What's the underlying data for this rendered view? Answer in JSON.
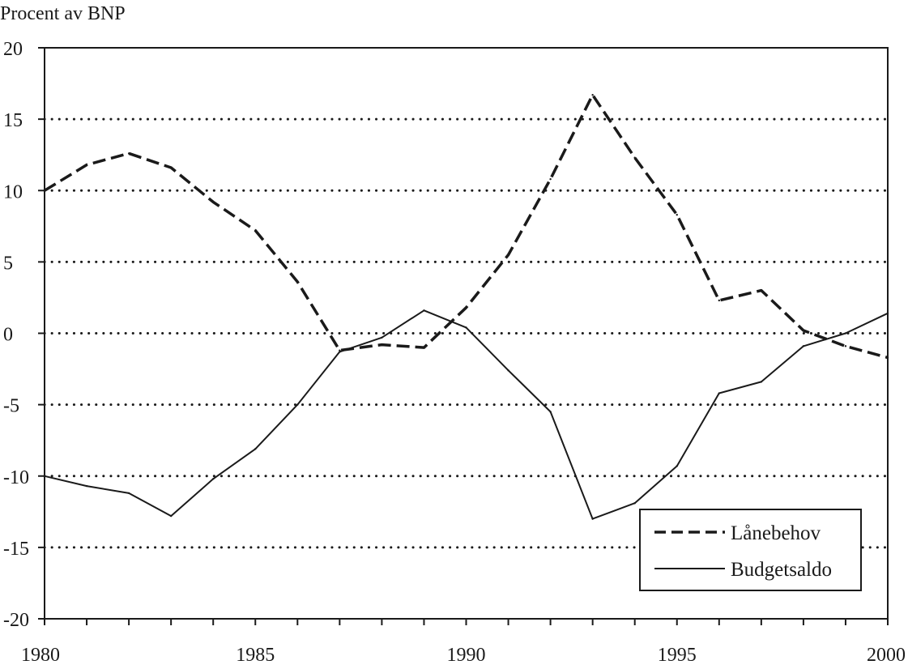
{
  "chart_data": {
    "type": "line",
    "ylabel": "Procent av BNP",
    "xlabel": "",
    "title": "",
    "xlim": [
      1980,
      2000
    ],
    "ylim": [
      -20,
      20
    ],
    "x_ticks": [
      1980,
      1985,
      1990,
      1995,
      2000
    ],
    "y_ticks": [
      20,
      15,
      10,
      5,
      0,
      -5,
      -10,
      -15,
      -20
    ],
    "grid": "horizontal dotted",
    "legend_position": "bottom-right",
    "x": [
      1980,
      1981,
      1982,
      1983,
      1984,
      1985,
      1986,
      1987,
      1988,
      1989,
      1990,
      1991,
      1992,
      1993,
      1994,
      1995,
      1996,
      1997,
      1998,
      1999,
      2000
    ],
    "series": [
      {
        "name": "Lånebehov",
        "style": "dashed",
        "values": [
          10.0,
          11.8,
          12.6,
          11.6,
          9.2,
          7.2,
          3.6,
          -1.2,
          -0.8,
          -1.0,
          1.8,
          5.5,
          10.8,
          16.7,
          12.3,
          8.3,
          2.3,
          3.0,
          0.2,
          -0.9,
          -1.7
        ]
      },
      {
        "name": "Budgetsaldo",
        "style": "solid",
        "values": [
          -10.0,
          -10.7,
          -11.2,
          -12.8,
          -10.2,
          -8.1,
          -5.0,
          -1.3,
          -0.3,
          1.6,
          0.4,
          -2.6,
          -5.5,
          -13.0,
          -11.9,
          -9.3,
          -4.2,
          -3.4,
          -0.9,
          0.0,
          1.4
        ]
      }
    ]
  }
}
